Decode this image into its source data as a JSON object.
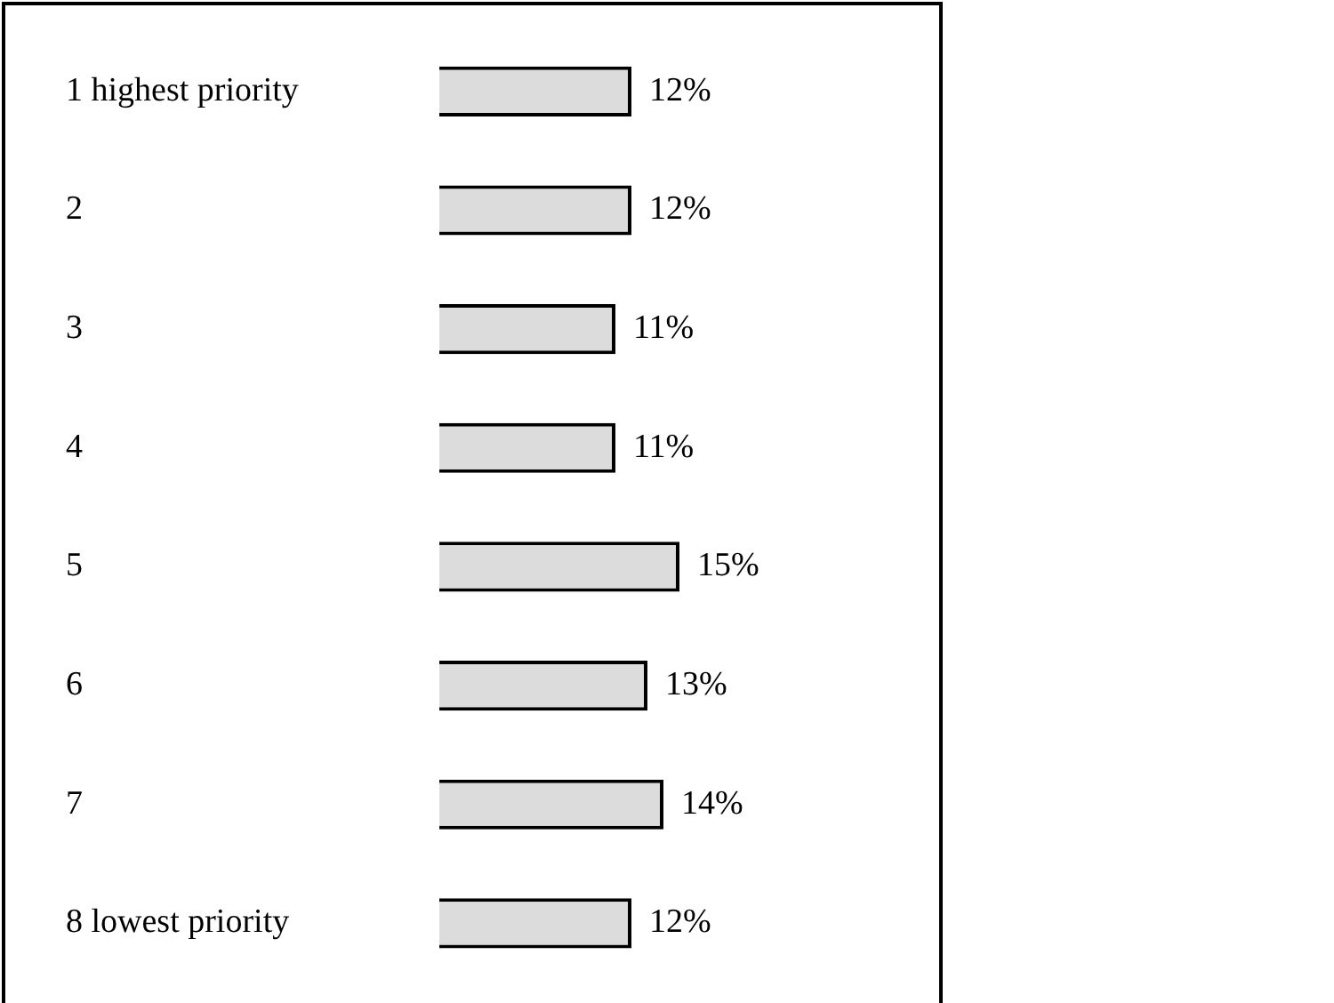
{
  "chart_data": {
    "type": "bar",
    "orientation": "horizontal",
    "categories": [
      "1 highest priority",
      "2",
      "3",
      "4",
      "5",
      "6",
      "7",
      "8 lowest priority"
    ],
    "values": [
      12,
      12,
      11,
      11,
      15,
      13,
      14,
      12
    ],
    "color": "#dcdcdc",
    "value_labels": [
      "12%",
      "12%",
      "11%",
      "11%",
      "15%",
      "13%",
      "14%",
      "12%"
    ],
    "legend": false
  }
}
